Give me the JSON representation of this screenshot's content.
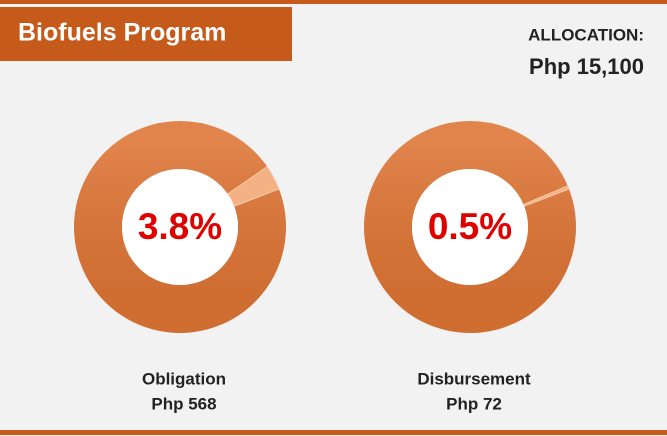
{
  "header": {
    "title": "Biofuels Program",
    "allocation_label": "ALLOCATION:",
    "allocation_value": "Php 15,100"
  },
  "chart_data": [
    {
      "type": "pie",
      "values": [
        3.8
      ],
      "value_labels": [
        "3.8%"
      ],
      "label": "Obligation",
      "amount": "Php 568",
      "colors": [
        "#f4b183"
      ],
      "ring_color": "#dd7434"
    },
    {
      "type": "pie",
      "values": [
        0.5
      ],
      "value_labels": [
        "0.5%"
      ],
      "label": "Disbursement",
      "amount": "Php 72",
      "colors": [
        "#f4b183"
      ],
      "ring_color": "#dd7434"
    }
  ]
}
